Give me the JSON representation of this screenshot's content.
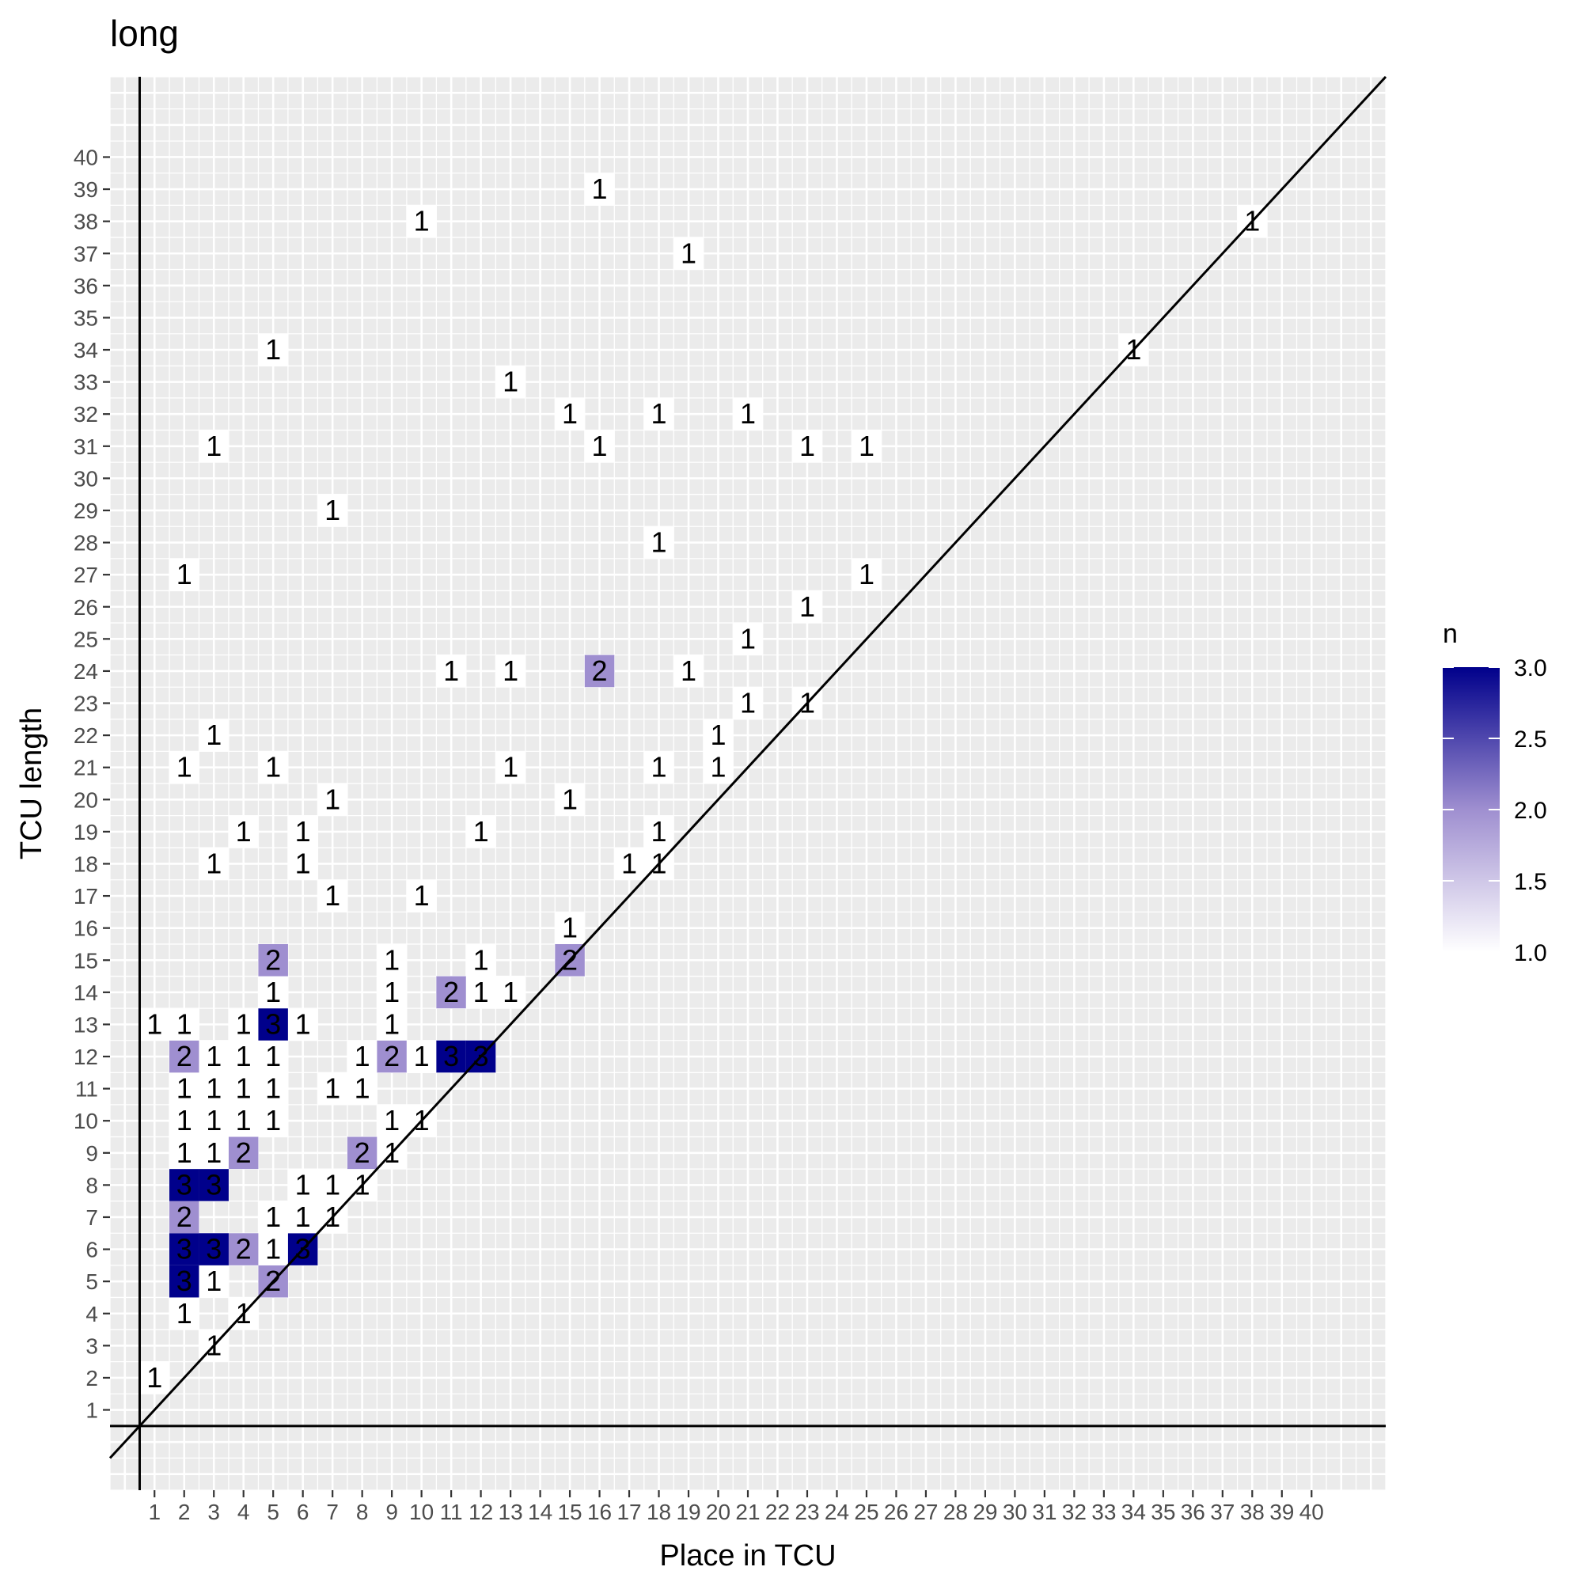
{
  "chart_data": {
    "type": "heatmap",
    "title": "long",
    "xlabel": "Place in TCU",
    "ylabel": "TCU length",
    "x_ticks": [
      1,
      2,
      3,
      4,
      5,
      6,
      7,
      8,
      9,
      10,
      11,
      12,
      13,
      14,
      15,
      16,
      17,
      18,
      19,
      20,
      21,
      22,
      23,
      24,
      25,
      26,
      27,
      28,
      29,
      30,
      31,
      32,
      33,
      34,
      35,
      36,
      37,
      38,
      39,
      40
    ],
    "y_ticks": [
      1,
      2,
      3,
      4,
      5,
      6,
      7,
      8,
      9,
      10,
      11,
      12,
      13,
      14,
      15,
      16,
      17,
      18,
      19,
      20,
      21,
      22,
      23,
      24,
      25,
      26,
      27,
      28,
      29,
      30,
      31,
      32,
      33,
      34,
      35,
      36,
      37,
      38,
      39,
      40
    ],
    "xlim": [
      -0.5,
      42.5
    ],
    "ylim": [
      -1.5,
      42.5
    ],
    "grid": true,
    "reference_lines": [
      {
        "type": "vline",
        "x": 0.5
      },
      {
        "type": "hline",
        "y": 0.5
      },
      {
        "type": "abline",
        "intercept": 0,
        "slope": 1
      }
    ],
    "legend": {
      "title": "n",
      "position": "right",
      "min": 1.0,
      "max": 3.0,
      "labels": [
        "1.0",
        "1.5",
        "2.0",
        "2.5",
        "3.0"
      ],
      "low_color": "#ffffff",
      "high_color": "#00008b"
    },
    "points": [
      {
        "x": 1,
        "y": 2,
        "n": 1
      },
      {
        "x": 3,
        "y": 3,
        "n": 1
      },
      {
        "x": 2,
        "y": 4,
        "n": 1
      },
      {
        "x": 4,
        "y": 4,
        "n": 1
      },
      {
        "x": 2,
        "y": 5,
        "n": 3
      },
      {
        "x": 3,
        "y": 5,
        "n": 1
      },
      {
        "x": 5,
        "y": 5,
        "n": 2
      },
      {
        "x": 2,
        "y": 6,
        "n": 3
      },
      {
        "x": 3,
        "y": 6,
        "n": 3
      },
      {
        "x": 4,
        "y": 6,
        "n": 2
      },
      {
        "x": 5,
        "y": 6,
        "n": 1
      },
      {
        "x": 6,
        "y": 6,
        "n": 3
      },
      {
        "x": 2,
        "y": 7,
        "n": 2
      },
      {
        "x": 5,
        "y": 7,
        "n": 1
      },
      {
        "x": 6,
        "y": 7,
        "n": 1
      },
      {
        "x": 7,
        "y": 7,
        "n": 1
      },
      {
        "x": 2,
        "y": 8,
        "n": 3
      },
      {
        "x": 3,
        "y": 8,
        "n": 3
      },
      {
        "x": 6,
        "y": 8,
        "n": 1
      },
      {
        "x": 7,
        "y": 8,
        "n": 1
      },
      {
        "x": 8,
        "y": 8,
        "n": 1
      },
      {
        "x": 2,
        "y": 9,
        "n": 1
      },
      {
        "x": 3,
        "y": 9,
        "n": 1
      },
      {
        "x": 4,
        "y": 9,
        "n": 2
      },
      {
        "x": 8,
        "y": 9,
        "n": 2
      },
      {
        "x": 9,
        "y": 9,
        "n": 1
      },
      {
        "x": 2,
        "y": 10,
        "n": 1
      },
      {
        "x": 3,
        "y": 10,
        "n": 1
      },
      {
        "x": 4,
        "y": 10,
        "n": 1
      },
      {
        "x": 5,
        "y": 10,
        "n": 1
      },
      {
        "x": 9,
        "y": 10,
        "n": 1
      },
      {
        "x": 10,
        "y": 10,
        "n": 1
      },
      {
        "x": 2,
        "y": 11,
        "n": 1
      },
      {
        "x": 3,
        "y": 11,
        "n": 1
      },
      {
        "x": 4,
        "y": 11,
        "n": 1
      },
      {
        "x": 5,
        "y": 11,
        "n": 1
      },
      {
        "x": 7,
        "y": 11,
        "n": 1
      },
      {
        "x": 8,
        "y": 11,
        "n": 1
      },
      {
        "x": 2,
        "y": 12,
        "n": 2
      },
      {
        "x": 3,
        "y": 12,
        "n": 1
      },
      {
        "x": 4,
        "y": 12,
        "n": 1
      },
      {
        "x": 5,
        "y": 12,
        "n": 1
      },
      {
        "x": 8,
        "y": 12,
        "n": 1
      },
      {
        "x": 9,
        "y": 12,
        "n": 2
      },
      {
        "x": 10,
        "y": 12,
        "n": 1
      },
      {
        "x": 11,
        "y": 12,
        "n": 3
      },
      {
        "x": 12,
        "y": 12,
        "n": 3
      },
      {
        "x": 1,
        "y": 13,
        "n": 1
      },
      {
        "x": 2,
        "y": 13,
        "n": 1
      },
      {
        "x": 4,
        "y": 13,
        "n": 1
      },
      {
        "x": 5,
        "y": 13,
        "n": 3
      },
      {
        "x": 6,
        "y": 13,
        "n": 1
      },
      {
        "x": 9,
        "y": 13,
        "n": 1
      },
      {
        "x": 5,
        "y": 14,
        "n": 1
      },
      {
        "x": 9,
        "y": 14,
        "n": 1
      },
      {
        "x": 11,
        "y": 14,
        "n": 2
      },
      {
        "x": 12,
        "y": 14,
        "n": 1
      },
      {
        "x": 13,
        "y": 14,
        "n": 1
      },
      {
        "x": 5,
        "y": 15,
        "n": 2
      },
      {
        "x": 9,
        "y": 15,
        "n": 1
      },
      {
        "x": 12,
        "y": 15,
        "n": 1
      },
      {
        "x": 15,
        "y": 15,
        "n": 2
      },
      {
        "x": 15,
        "y": 16,
        "n": 1
      },
      {
        "x": 7,
        "y": 17,
        "n": 1
      },
      {
        "x": 10,
        "y": 17,
        "n": 1
      },
      {
        "x": 3,
        "y": 18,
        "n": 1
      },
      {
        "x": 6,
        "y": 18,
        "n": 1
      },
      {
        "x": 17,
        "y": 18,
        "n": 1
      },
      {
        "x": 18,
        "y": 18,
        "n": 1
      },
      {
        "x": 4,
        "y": 19,
        "n": 1
      },
      {
        "x": 6,
        "y": 19,
        "n": 1
      },
      {
        "x": 12,
        "y": 19,
        "n": 1
      },
      {
        "x": 18,
        "y": 19,
        "n": 1
      },
      {
        "x": 7,
        "y": 20,
        "n": 1
      },
      {
        "x": 15,
        "y": 20,
        "n": 1
      },
      {
        "x": 2,
        "y": 21,
        "n": 1
      },
      {
        "x": 5,
        "y": 21,
        "n": 1
      },
      {
        "x": 13,
        "y": 21,
        "n": 1
      },
      {
        "x": 18,
        "y": 21,
        "n": 1
      },
      {
        "x": 20,
        "y": 21,
        "n": 1
      },
      {
        "x": 3,
        "y": 22,
        "n": 1
      },
      {
        "x": 20,
        "y": 22,
        "n": 1
      },
      {
        "x": 21,
        "y": 23,
        "n": 1
      },
      {
        "x": 23,
        "y": 23,
        "n": 1
      },
      {
        "x": 11,
        "y": 24,
        "n": 1
      },
      {
        "x": 13,
        "y": 24,
        "n": 1
      },
      {
        "x": 16,
        "y": 24,
        "n": 2
      },
      {
        "x": 19,
        "y": 24,
        "n": 1
      },
      {
        "x": 21,
        "y": 25,
        "n": 1
      },
      {
        "x": 23,
        "y": 26,
        "n": 1
      },
      {
        "x": 2,
        "y": 27,
        "n": 1
      },
      {
        "x": 25,
        "y": 27,
        "n": 1
      },
      {
        "x": 18,
        "y": 28,
        "n": 1
      },
      {
        "x": 7,
        "y": 29,
        "n": 1
      },
      {
        "x": 3,
        "y": 31,
        "n": 1
      },
      {
        "x": 16,
        "y": 31,
        "n": 1
      },
      {
        "x": 23,
        "y": 31,
        "n": 1
      },
      {
        "x": 25,
        "y": 31,
        "n": 1
      },
      {
        "x": 15,
        "y": 32,
        "n": 1
      },
      {
        "x": 18,
        "y": 32,
        "n": 1
      },
      {
        "x": 21,
        "y": 32,
        "n": 1
      },
      {
        "x": 13,
        "y": 33,
        "n": 1
      },
      {
        "x": 5,
        "y": 34,
        "n": 1
      },
      {
        "x": 34,
        "y": 34,
        "n": 1
      },
      {
        "x": 19,
        "y": 37,
        "n": 1
      },
      {
        "x": 10,
        "y": 38,
        "n": 1
      },
      {
        "x": 38,
        "y": 38,
        "n": 1
      },
      {
        "x": 16,
        "y": 39,
        "n": 1
      }
    ]
  }
}
